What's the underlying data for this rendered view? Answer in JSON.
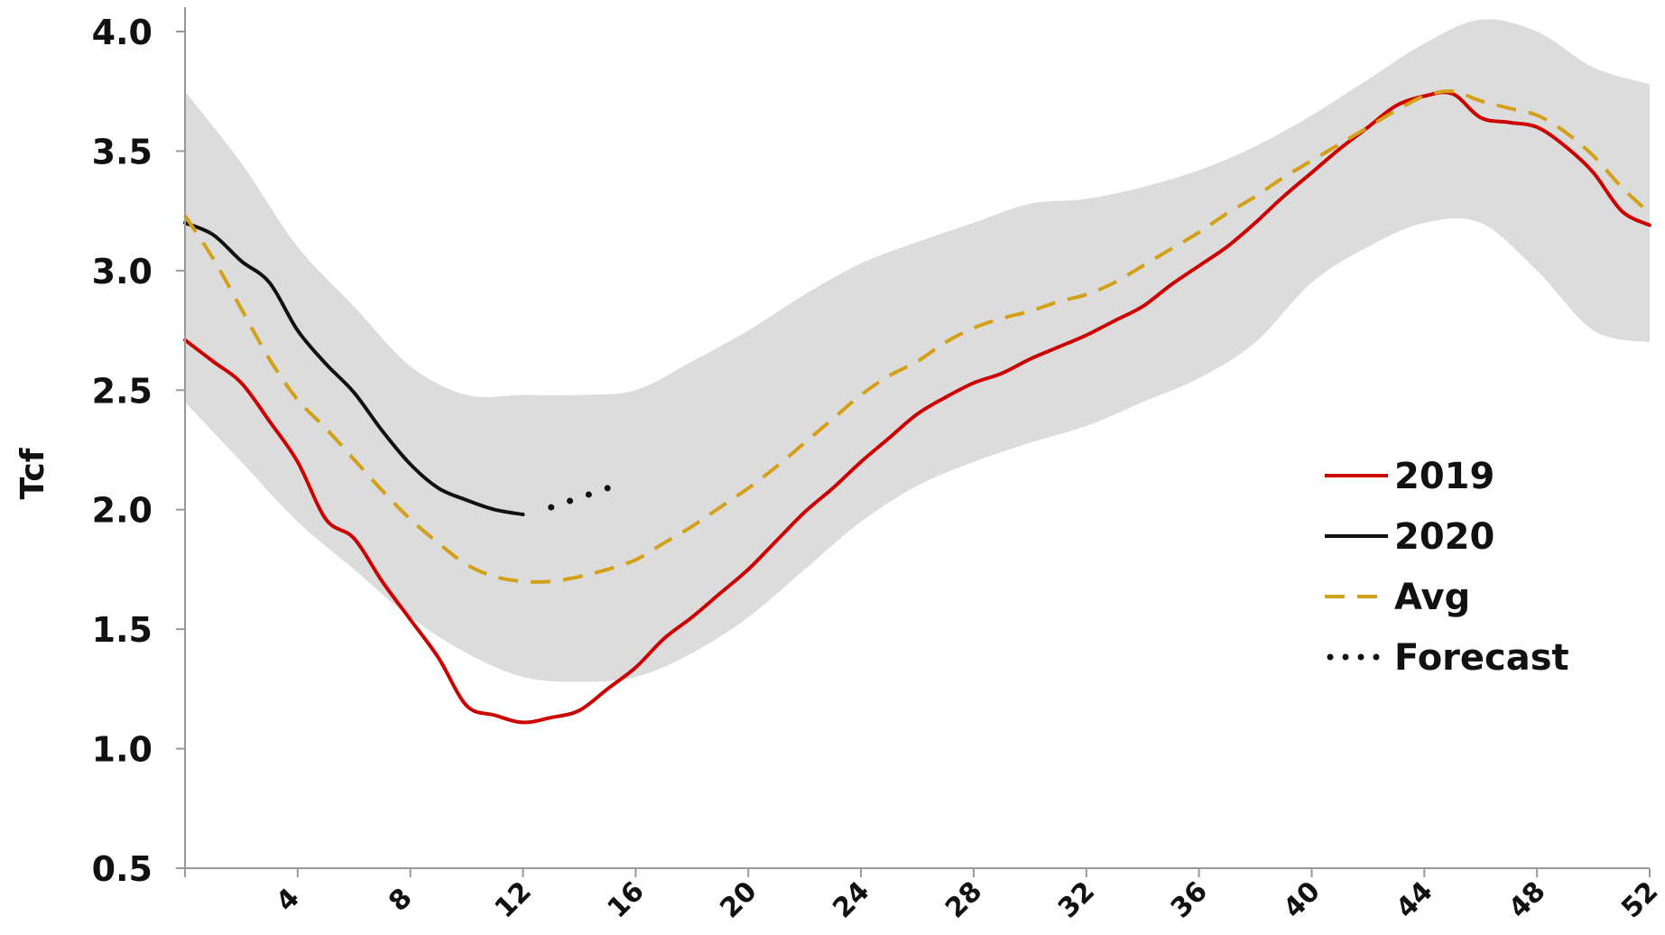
{
  "chart_data": {
    "type": "line",
    "title": "",
    "xlabel": "",
    "ylabel": "Tcf",
    "xlim": [
      0,
      52
    ],
    "ylim": [
      0.5,
      4.0
    ],
    "x_ticks": [
      4,
      8,
      12,
      16,
      20,
      24,
      28,
      32,
      36,
      40,
      44,
      48,
      52
    ],
    "y_ticks": [
      "4.0",
      "3.5",
      "3.0",
      "2.5",
      "2.0",
      "1.5",
      "1.0",
      "0.5"
    ],
    "grid": false,
    "legend_position": "right",
    "band": {
      "x": [
        0,
        2,
        4,
        6,
        8,
        10,
        12,
        14,
        16,
        18,
        20,
        22,
        24,
        26,
        28,
        30,
        32,
        34,
        36,
        38,
        40,
        42,
        44,
        46,
        48,
        50,
        52
      ],
      "upper": [
        3.75,
        3.45,
        3.1,
        2.85,
        2.6,
        2.48,
        2.48,
        2.48,
        2.5,
        2.62,
        2.75,
        2.9,
        3.03,
        3.12,
        3.2,
        3.28,
        3.3,
        3.35,
        3.42,
        3.52,
        3.65,
        3.8,
        3.95,
        4.05,
        4.0,
        3.85,
        3.78
      ],
      "lower": [
        2.45,
        2.2,
        1.95,
        1.75,
        1.55,
        1.4,
        1.3,
        1.28,
        1.3,
        1.4,
        1.55,
        1.75,
        1.95,
        2.1,
        2.2,
        2.28,
        2.35,
        2.45,
        2.55,
        2.7,
        2.95,
        3.1,
        3.2,
        3.2,
        3.0,
        2.75,
        2.7
      ],
      "color": "#dcdcdc"
    },
    "series": [
      {
        "name": "2019",
        "color": "#cc0000",
        "style": "solid",
        "x": [
          0,
          1,
          2,
          3,
          4,
          5,
          6,
          7,
          8,
          9,
          10,
          11,
          12,
          13,
          14,
          15,
          16,
          17,
          18,
          19,
          20,
          21,
          22,
          23,
          24,
          25,
          26,
          27,
          28,
          29,
          30,
          31,
          32,
          33,
          34,
          35,
          36,
          37,
          38,
          39,
          40,
          41,
          42,
          43,
          44,
          45,
          46,
          47,
          48,
          49,
          50,
          51,
          52
        ],
        "values": [
          2.71,
          2.62,
          2.53,
          2.37,
          2.2,
          1.96,
          1.88,
          1.7,
          1.54,
          1.38,
          1.18,
          1.14,
          1.11,
          1.13,
          1.16,
          1.25,
          1.34,
          1.46,
          1.55,
          1.65,
          1.75,
          1.87,
          1.99,
          2.09,
          2.2,
          2.3,
          2.4,
          2.47,
          2.53,
          2.57,
          2.63,
          2.68,
          2.73,
          2.79,
          2.85,
          2.94,
          3.02,
          3.1,
          3.2,
          3.31,
          3.41,
          3.51,
          3.6,
          3.69,
          3.73,
          3.74,
          3.64,
          3.62,
          3.6,
          3.52,
          3.41,
          3.25,
          3.19
        ]
      },
      {
        "name": "2020",
        "color": "#111111",
        "style": "solid",
        "x": [
          0,
          1,
          2,
          3,
          4,
          5,
          6,
          7,
          8,
          9,
          10,
          11,
          12
        ],
        "values": [
          3.2,
          3.15,
          3.04,
          2.95,
          2.75,
          2.61,
          2.49,
          2.33,
          2.19,
          2.09,
          2.04,
          2.0,
          1.98
        ]
      },
      {
        "name": "Avg",
        "color": "#d4a017",
        "style": "dashed",
        "x": [
          0,
          1,
          2,
          3,
          4,
          5,
          6,
          7,
          8,
          9,
          10,
          11,
          12,
          13,
          14,
          15,
          16,
          17,
          18,
          19,
          20,
          21,
          22,
          23,
          24,
          25,
          26,
          27,
          28,
          29,
          30,
          31,
          32,
          33,
          34,
          35,
          36,
          37,
          38,
          39,
          40,
          41,
          42,
          43,
          44,
          45,
          46,
          47,
          48,
          49,
          50,
          51,
          52
        ],
        "values": [
          3.23,
          3.05,
          2.84,
          2.63,
          2.46,
          2.34,
          2.21,
          2.08,
          1.96,
          1.86,
          1.77,
          1.72,
          1.7,
          1.7,
          1.72,
          1.75,
          1.79,
          1.86,
          1.93,
          2.01,
          2.09,
          2.18,
          2.28,
          2.38,
          2.48,
          2.56,
          2.62,
          2.7,
          2.76,
          2.8,
          2.83,
          2.87,
          2.9,
          2.95,
          3.02,
          3.09,
          3.16,
          3.24,
          3.31,
          3.39,
          3.46,
          3.53,
          3.6,
          3.67,
          3.73,
          3.75,
          3.71,
          3.68,
          3.65,
          3.58,
          3.48,
          3.35,
          3.24
        ]
      },
      {
        "name": "Forecast",
        "color": "#111111",
        "style": "dotted",
        "x": [
          13,
          14,
          15
        ],
        "values": [
          2.01,
          2.05,
          2.09
        ]
      }
    ]
  }
}
